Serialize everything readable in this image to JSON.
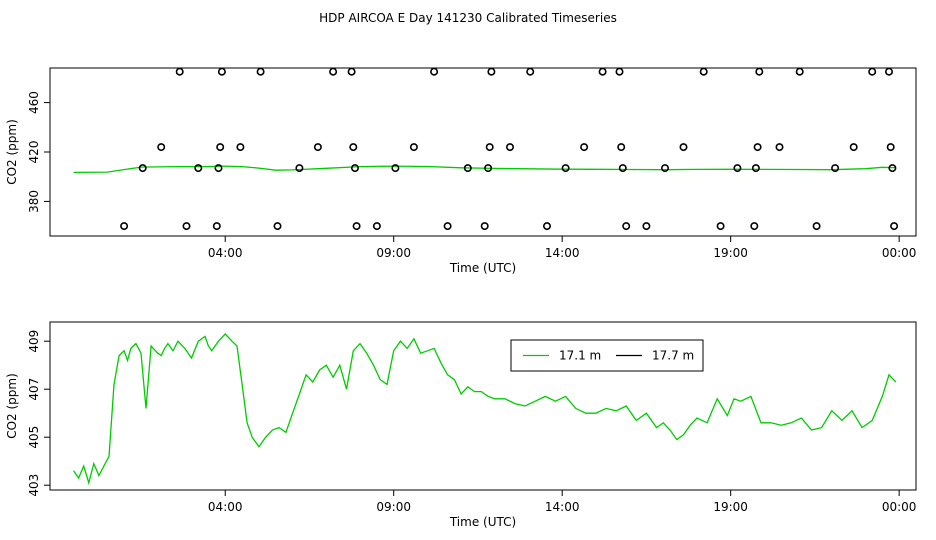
{
  "title": "HDP AIRCOA E  Day 141230  Calibrated Timeseries",
  "colors": {
    "series_17_1": "#00cc00",
    "series_17_7": "#000000",
    "axis": "#000000"
  },
  "chart_data": [
    {
      "type": "scatter",
      "xlabel": "Time (UTC)",
      "ylabel": "CO2 (ppm)",
      "x_unit": "hours since 00:00 UTC",
      "xlim": [
        -1.2,
        24.5
      ],
      "ylim": [
        352,
        488
      ],
      "xticks": [
        4,
        9,
        14,
        19,
        24
      ],
      "xtick_labels": [
        "04:00",
        "09:00",
        "14:00",
        "19:00",
        "00:00"
      ],
      "yticks": [
        380,
        420,
        460
      ],
      "ytick_labels": [
        "380",
        "420",
        "460"
      ],
      "markers": {
        "name": "measurements",
        "shape": "open-circle",
        "points": [
          [
            1.0,
            360
          ],
          [
            1.55,
            407
          ],
          [
            2.1,
            424
          ],
          [
            2.65,
            485
          ],
          [
            2.85,
            360
          ],
          [
            3.2,
            407
          ],
          [
            3.75,
            360
          ],
          [
            3.8,
            407
          ],
          [
            3.85,
            424
          ],
          [
            3.9,
            485
          ],
          [
            4.45,
            424
          ],
          [
            5.05,
            485
          ],
          [
            5.55,
            360
          ],
          [
            6.2,
            407
          ],
          [
            6.75,
            424
          ],
          [
            7.2,
            485
          ],
          [
            7.75,
            485
          ],
          [
            7.8,
            424
          ],
          [
            7.85,
            407
          ],
          [
            7.9,
            360
          ],
          [
            8.5,
            360
          ],
          [
            9.05,
            407
          ],
          [
            9.6,
            424
          ],
          [
            10.2,
            485
          ],
          [
            10.6,
            360
          ],
          [
            11.2,
            407
          ],
          [
            11.7,
            360
          ],
          [
            11.8,
            407
          ],
          [
            11.85,
            424
          ],
          [
            11.9,
            485
          ],
          [
            12.45,
            424
          ],
          [
            13.05,
            485
          ],
          [
            13.55,
            360
          ],
          [
            14.1,
            407
          ],
          [
            14.65,
            424
          ],
          [
            15.2,
            485
          ],
          [
            15.7,
            485
          ],
          [
            15.75,
            424
          ],
          [
            15.8,
            407
          ],
          [
            15.9,
            360
          ],
          [
            16.5,
            360
          ],
          [
            17.05,
            407
          ],
          [
            17.6,
            424
          ],
          [
            18.2,
            485
          ],
          [
            18.7,
            360
          ],
          [
            19.2,
            407
          ],
          [
            19.7,
            360
          ],
          [
            19.75,
            407
          ],
          [
            19.8,
            424
          ],
          [
            19.85,
            485
          ],
          [
            20.45,
            424
          ],
          [
            21.05,
            485
          ],
          [
            21.55,
            360
          ],
          [
            22.1,
            407
          ],
          [
            22.65,
            424
          ],
          [
            23.2,
            485
          ],
          [
            23.7,
            485
          ],
          [
            23.75,
            424
          ],
          [
            23.8,
            407
          ],
          [
            23.85,
            360
          ]
        ]
      },
      "series": [
        {
          "name": "17.1 m",
          "x": [
            -0.5,
            0.5,
            1.5,
            2.5,
            3.5,
            4.0,
            4.5,
            5.0,
            5.5,
            6.0,
            7.0,
            8.0,
            9.0,
            10.0,
            11.0,
            12.0,
            13.0,
            14.0,
            15.0,
            16.0,
            17.0,
            18.0,
            19.0,
            20.0,
            21.0,
            22.0,
            23.0,
            23.5,
            23.9
          ],
          "values": [
            403.5,
            403.7,
            407.8,
            408.2,
            408.3,
            408.6,
            408.2,
            407.0,
            405.3,
            405.5,
            406.8,
            408.2,
            408.6,
            408.3,
            407.2,
            406.7,
            406.4,
            406.1,
            406.0,
            405.8,
            405.7,
            405.9,
            406.0,
            405.9,
            405.8,
            405.7,
            406.5,
            407.6,
            407.3
          ]
        }
      ]
    },
    {
      "type": "line",
      "xlabel": "Time (UTC)",
      "ylabel": "CO2 (ppm)",
      "x_unit": "hours since 00:00 UTC",
      "xlim": [
        -1.2,
        24.5
      ],
      "ylim": [
        402.8,
        409.8
      ],
      "xticks": [
        4,
        9,
        14,
        19,
        24
      ],
      "xtick_labels": [
        "04:00",
        "09:00",
        "14:00",
        "19:00",
        "00:00"
      ],
      "yticks": [
        403,
        405,
        407,
        409
      ],
      "ytick_labels": [
        "403",
        "405",
        "407",
        "409"
      ],
      "legend": {
        "placement": "top-center-right",
        "entries": [
          "17.1 m",
          "17.7 m"
        ]
      },
      "series": [
        {
          "name": "17.1 m",
          "x": [
            -0.5,
            -0.35,
            -0.2,
            -0.05,
            0.1,
            0.25,
            0.4,
            0.55,
            0.7,
            0.85,
            1.0,
            1.1,
            1.2,
            1.35,
            1.5,
            1.65,
            1.8,
            2.0,
            2.1,
            2.2,
            2.3,
            2.45,
            2.6,
            2.8,
            3.0,
            3.2,
            3.4,
            3.5,
            3.6,
            3.8,
            4.0,
            4.2,
            4.35,
            4.5,
            4.65,
            4.8,
            5.0,
            5.2,
            5.4,
            5.6,
            5.8,
            6.0,
            6.2,
            6.4,
            6.6,
            6.8,
            7.0,
            7.2,
            7.4,
            7.6,
            7.8,
            8.0,
            8.2,
            8.4,
            8.6,
            8.8,
            9.0,
            9.2,
            9.4,
            9.6,
            9.8,
            10.0,
            10.2,
            10.4,
            10.6,
            10.8,
            11.0,
            11.2,
            11.4,
            11.6,
            11.8,
            12.0,
            12.3,
            12.6,
            12.9,
            13.2,
            13.5,
            13.8,
            14.1,
            14.4,
            14.7,
            15.0,
            15.3,
            15.6,
            15.9,
            16.2,
            16.5,
            16.8,
            17.0,
            17.2,
            17.4,
            17.6,
            17.8,
            18.0,
            18.3,
            18.6,
            18.9,
            19.1,
            19.3,
            19.6,
            19.9,
            20.2,
            20.5,
            20.8,
            21.1,
            21.4,
            21.7,
            22.0,
            22.3,
            22.6,
            22.9,
            23.2,
            23.5,
            23.7,
            23.9
          ],
          "values": [
            403.6,
            403.3,
            403.8,
            403.1,
            403.9,
            403.4,
            403.8,
            404.2,
            407.2,
            408.4,
            408.6,
            408.2,
            408.7,
            408.9,
            408.5,
            406.2,
            408.8,
            408.5,
            408.4,
            408.7,
            408.9,
            408.6,
            409.0,
            408.7,
            408.3,
            409.0,
            409.2,
            408.8,
            408.6,
            409.0,
            409.3,
            409.0,
            408.8,
            407.2,
            405.6,
            405.0,
            404.6,
            405.0,
            405.3,
            405.4,
            405.2,
            406.0,
            406.8,
            407.6,
            407.3,
            407.8,
            408.0,
            407.5,
            408.0,
            407.0,
            408.6,
            408.9,
            408.5,
            408.0,
            407.4,
            407.2,
            408.6,
            409.0,
            408.7,
            409.1,
            408.5,
            408.6,
            408.7,
            408.1,
            407.6,
            407.4,
            406.8,
            407.1,
            406.9,
            406.9,
            406.7,
            406.6,
            406.6,
            406.4,
            406.3,
            406.5,
            406.7,
            406.5,
            406.7,
            406.2,
            406.0,
            406.0,
            406.2,
            406.1,
            406.3,
            405.7,
            406.0,
            405.4,
            405.6,
            405.3,
            404.9,
            405.1,
            405.5,
            405.8,
            405.6,
            406.6,
            405.9,
            406.6,
            406.5,
            406.7,
            405.6,
            405.6,
            405.5,
            405.6,
            405.8,
            405.3,
            405.4,
            406.1,
            405.7,
            406.1,
            405.4,
            405.7,
            406.7,
            407.6,
            407.3
          ]
        },
        {
          "name": "17.7 m",
          "x": [],
          "values": []
        }
      ]
    }
  ]
}
